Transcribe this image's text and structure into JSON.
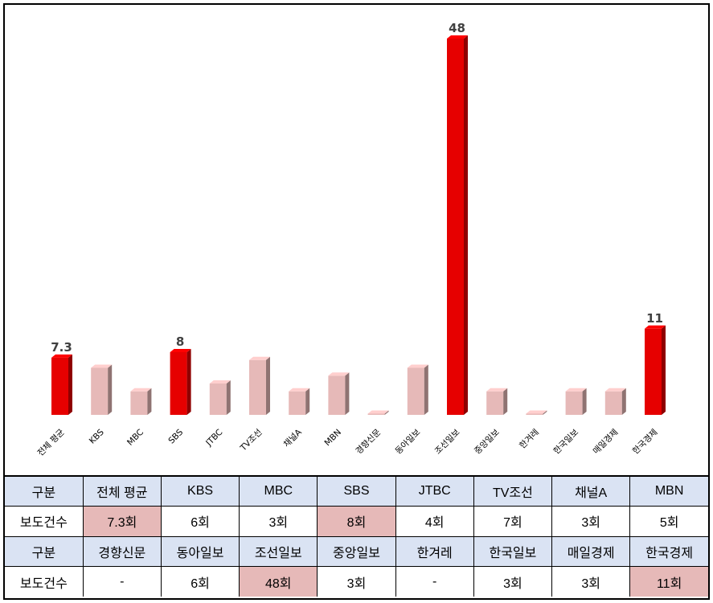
{
  "colors": {
    "highlight_bar": "#e60000",
    "normal_bar": "#e6b9b8",
    "table_header_bg": "#dae3f3",
    "table_highlight_bg": "#e6b9b8"
  },
  "chart_data": {
    "type": "bar",
    "categories": [
      "전체 평균",
      "KBS",
      "MBC",
      "SBS",
      "JTBC",
      "TV조선",
      "채널A",
      "MBN",
      "경향신문",
      "동아일보",
      "조선일보",
      "중앙일보",
      "한겨레",
      "한국일보",
      "매일경제",
      "한국경제"
    ],
    "values": [
      7.3,
      6,
      3,
      8,
      4,
      7,
      3,
      5,
      0,
      6,
      48,
      3,
      0,
      3,
      3,
      11
    ],
    "highlighted": [
      0,
      3,
      10,
      15
    ],
    "data_labels": [
      "7.3",
      "",
      "",
      "8",
      "",
      "",
      "",
      "",
      "",
      "",
      "48",
      "",
      "",
      "",
      "",
      "11"
    ],
    "ylim": [
      0,
      48
    ],
    "grid": false,
    "legend": "none"
  },
  "table": {
    "rows": [
      {
        "type": "header",
        "cells": [
          "구분",
          "전체 평균",
          "KBS",
          "MBC",
          "SBS",
          "JTBC",
          "TV조선",
          "채널A",
          "MBN"
        ]
      },
      {
        "type": "data",
        "cells": [
          "보도건수",
          "7.3회",
          "6회",
          "3회",
          "8회",
          "4회",
          "7회",
          "3회",
          "5회"
        ],
        "highlight": [
          1,
          4
        ]
      },
      {
        "type": "header",
        "cells": [
          "구분",
          "경향신문",
          "동아일보",
          "조선일보",
          "중앙일보",
          "한겨레",
          "한국일보",
          "매일경제",
          "한국경제"
        ]
      },
      {
        "type": "data",
        "cells": [
          "보도건수",
          "-",
          "6회",
          "48회",
          "3회",
          "-",
          "3회",
          "3회",
          "11회"
        ],
        "highlight": [
          3,
          8
        ]
      }
    ]
  }
}
